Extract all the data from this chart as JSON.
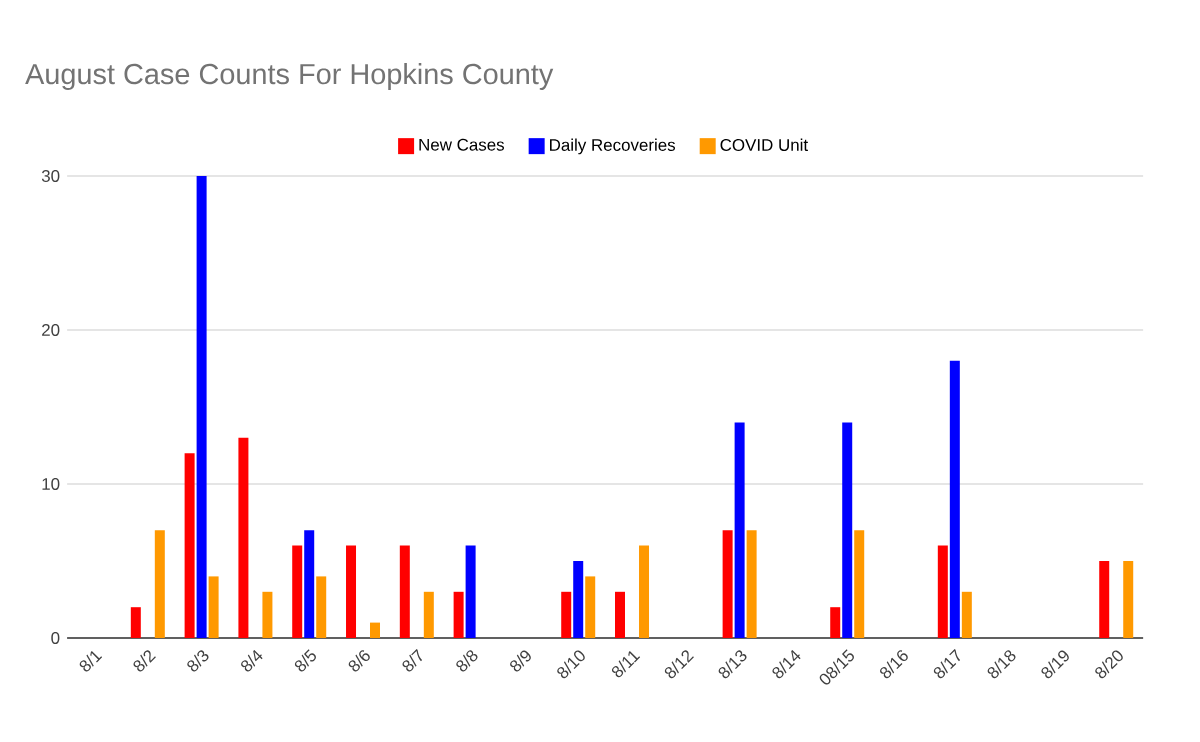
{
  "chart_data": {
    "type": "bar",
    "title": "August Case Counts For Hopkins County",
    "categories": [
      "8/1",
      "8/2",
      "8/3",
      "8/4",
      "8/5",
      "8/6",
      "8/7",
      "8/8",
      "8/9",
      "8/10",
      "8/11",
      "8/12",
      "8/13",
      "8/14",
      "08/15",
      "8/16",
      "8/17",
      "8/18",
      "8/19",
      "8/20"
    ],
    "series": [
      {
        "name": "New Cases",
        "color": "#ff0000",
        "values": [
          null,
          2,
          12,
          13,
          6,
          6,
          6,
          3,
          null,
          3,
          3,
          null,
          7,
          null,
          2,
          null,
          6,
          null,
          null,
          5
        ]
      },
      {
        "name": "Daily Recoveries",
        "color": "#0000ff",
        "values": [
          null,
          null,
          30,
          null,
          7,
          null,
          null,
          6,
          null,
          5,
          null,
          null,
          14,
          null,
          14,
          null,
          18,
          null,
          null,
          null
        ]
      },
      {
        "name": "COVID Unit",
        "color": "#ff9900",
        "values": [
          null,
          7,
          4,
          3,
          4,
          1,
          3,
          null,
          null,
          4,
          6,
          null,
          7,
          null,
          7,
          null,
          3,
          null,
          null,
          5
        ]
      }
    ],
    "ylim": [
      0,
      30
    ],
    "yticks": [
      0,
      10,
      20,
      30
    ],
    "grid": "y",
    "legend": "top"
  }
}
